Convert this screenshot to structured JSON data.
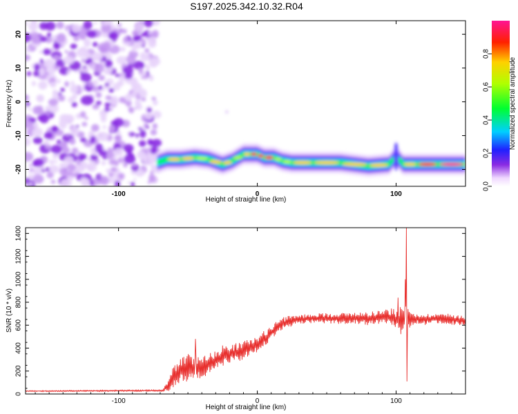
{
  "title": "S197.2025.342.10.32.R04",
  "chart_data": [
    {
      "type": "heatmap",
      "xlabel": "Height of straight line (km)",
      "ylabel": "Frequency (Hz)",
      "xlim": [
        -167,
        150
      ],
      "ylim": [
        -25,
        24
      ],
      "xticks": [
        -100,
        0,
        100
      ],
      "xtick_labels": [
        "-100",
        "0",
        "100"
      ],
      "yticks": [
        -20,
        -10,
        0,
        10,
        20
      ],
      "ytick_labels": [
        "-20",
        "-10",
        "0",
        "10",
        "20"
      ],
      "colorbar": {
        "label": "Normalized spectral amplitude",
        "range": [
          0,
          1
        ],
        "ticks": [
          0.0,
          0.2,
          0.4,
          0.6,
          0.8
        ],
        "tick_labels": [
          "0.0",
          "0.2",
          "0.4",
          "0.6",
          "0.8"
        ]
      },
      "noise_region_x": [
        -167,
        -72
      ],
      "ridge": {
        "x": [
          -72,
          -65,
          -55,
          -45,
          -35,
          -25,
          -18,
          -10,
          -5,
          0,
          5,
          12,
          18,
          25,
          40,
          60,
          80,
          95,
          100,
          105,
          115,
          130,
          150
        ],
        "y": [
          -18,
          -17,
          -17,
          -16.5,
          -17,
          -18.5,
          -17.5,
          -15.5,
          -15.5,
          -15.5,
          -16.5,
          -16.5,
          -17.5,
          -18,
          -18,
          -18,
          -19,
          -18.5,
          -16,
          -18.5,
          -18.5,
          -18.5,
          -18.5
        ],
        "amp": [
          0.35,
          0.6,
          0.75,
          0.55,
          0.7,
          0.8,
          0.6,
          0.7,
          0.8,
          0.75,
          0.85,
          0.7,
          0.6,
          0.65,
          0.8,
          0.7,
          0.75,
          0.6,
          0.4,
          0.55,
          0.8,
          0.9,
          0.9
        ]
      },
      "spike": {
        "x": 100,
        "y_range": [
          -20.5,
          -12
        ]
      }
    },
    {
      "type": "line",
      "xlabel": "Height of straight line (km)",
      "ylabel": "SNR (10 * v/v)",
      "xlim": [
        -167,
        150
      ],
      "ylim": [
        0,
        1450
      ],
      "xticks": [
        -100,
        0,
        100
      ],
      "xtick_labels": [
        "-100",
        "0",
        "100"
      ],
      "yticks": [
        0,
        200,
        400,
        600,
        800,
        1000,
        1200,
        1400
      ],
      "ytick_labels": [
        "0",
        "200",
        "400",
        "600",
        "800",
        "1000",
        "1200",
        "1400"
      ],
      "series": [
        {
          "name": "SNR",
          "color": "#e8302e",
          "x": [
            -167,
            -68,
            -64,
            -60,
            -55,
            -50,
            -45,
            -40,
            -35,
            -30,
            -25,
            -20,
            -15,
            -10,
            -5,
            0,
            5,
            10,
            15,
            20,
            25,
            30,
            40,
            50,
            60,
            70,
            80,
            90,
            95,
            100,
            104,
            108,
            110,
            115,
            120,
            130,
            140,
            150
          ],
          "y": [
            25,
            30,
            80,
            160,
            210,
            230,
            230,
            240,
            260,
            290,
            330,
            350,
            360,
            380,
            410,
            430,
            480,
            530,
            590,
            620,
            640,
            650,
            660,
            660,
            660,
            660,
            660,
            670,
            670,
            650,
            640,
            640,
            650,
            660,
            650,
            660,
            650,
            640
          ],
          "noise": [
            4,
            6,
            50,
            80,
            90,
            100,
            90,
            90,
            80,
            80,
            80,
            70,
            70,
            70,
            60,
            60,
            60,
            50,
            50,
            45,
            40,
            35,
            35,
            40,
            40,
            45,
            50,
            55,
            65,
            75,
            120,
            100,
            55,
            40,
            40,
            40,
            40,
            40
          ]
        }
      ],
      "spikes": [
        {
          "x": 106.5,
          "y": 1000
        },
        {
          "x": 107.6,
          "y": 1450
        },
        {
          "x": 107.9,
          "y": 110
        },
        {
          "x": -44.5,
          "y": 480
        },
        {
          "x": 101.5,
          "y": 840
        }
      ]
    }
  ]
}
